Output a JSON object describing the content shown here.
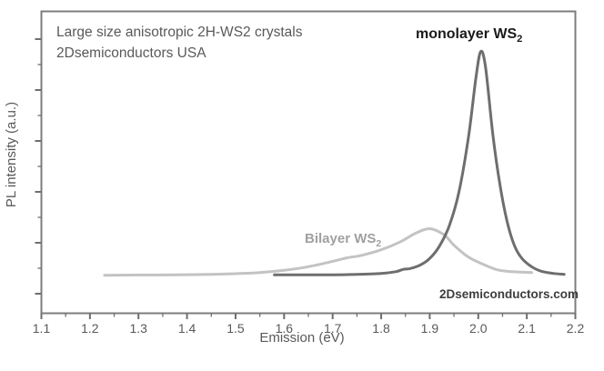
{
  "figure": {
    "title_line1": "Large size anisotropic 2H-WS2 crystals",
    "title_line2": "2Dsemiconductors USA",
    "watermark": "2Dsemiconductors.com"
  },
  "annotations": {
    "monolayer": {
      "text": "monolayer WS",
      "sub": "2"
    },
    "bilayer": {
      "text": "Bilayer WS",
      "sub": "2"
    }
  },
  "axes": {
    "xlabel": "Emission (eV)",
    "ylabel": "PL intensity (a.u.)",
    "x_tick_labels": [
      "1.1",
      "1.2",
      "1.3",
      "1.4",
      "1.5",
      "1.6",
      "1.7",
      "1.8",
      "1.9",
      "2.0",
      "2.1",
      "2.2"
    ],
    "x_minor_step": 0.05,
    "y_axis_numeric_labels": false
  },
  "colors": {
    "axis": "#7d7d7d",
    "tick": "#6e6e6e",
    "tick_label": "#595959",
    "monolayer_curve": "#6e6e6e",
    "bilayer_curve": "#c3c3c3"
  },
  "chart_data": {
    "type": "line",
    "xlabel": "Emission (eV)",
    "ylabel": "PL intensity (a.u.)",
    "xlim": [
      1.1,
      2.2
    ],
    "ylim_relative": [
      -0.17,
      1.18
    ],
    "x_ticks": [
      1.1,
      1.2,
      1.3,
      1.4,
      1.5,
      1.6,
      1.7,
      1.8,
      1.9,
      2.0,
      2.1,
      2.2
    ],
    "grid": false,
    "legend": "in-plot text annotations",
    "y_units_note": "arbitrary units, normalized to monolayer peak = 1.0",
    "series": [
      {
        "name": "Bilayer WS2",
        "color": "#c3c3c3",
        "peak_eV": 1.9,
        "peak_relative_intensity": 0.21,
        "x": [
          1.23,
          1.3,
          1.38,
          1.45,
          1.5,
          1.55,
          1.6,
          1.65,
          1.7,
          1.73,
          1.76,
          1.8,
          1.84,
          1.87,
          1.9,
          1.93,
          1.95,
          1.98,
          2.01,
          2.04,
          2.07,
          2.11
        ],
        "y": [
          0.0,
          0.001,
          0.002,
          0.004,
          0.007,
          0.012,
          0.022,
          0.038,
          0.062,
          0.078,
          0.089,
          0.114,
          0.15,
          0.187,
          0.208,
          0.18,
          0.134,
          0.081,
          0.049,
          0.024,
          0.016,
          0.012
        ]
      },
      {
        "name": "monolayer WS2",
        "color": "#6e6e6e",
        "peak_eV": 2.005,
        "peak_relative_intensity": 1.0,
        "x": [
          1.58,
          1.64,
          1.7,
          1.75,
          1.8,
          1.83,
          1.845,
          1.86,
          1.88,
          1.9,
          1.92,
          1.94,
          1.96,
          1.98,
          1.995,
          2.005,
          2.015,
          2.03,
          2.045,
          2.06,
          2.075,
          2.09,
          2.11,
          2.13,
          2.155,
          2.177
        ],
        "y": [
          0.002,
          0.002,
          0.002,
          0.004,
          0.008,
          0.016,
          0.026,
          0.03,
          0.045,
          0.075,
          0.13,
          0.22,
          0.37,
          0.62,
          0.88,
          1.0,
          0.93,
          0.63,
          0.4,
          0.235,
          0.13,
          0.075,
          0.038,
          0.018,
          0.008,
          0.004
        ]
      }
    ]
  }
}
